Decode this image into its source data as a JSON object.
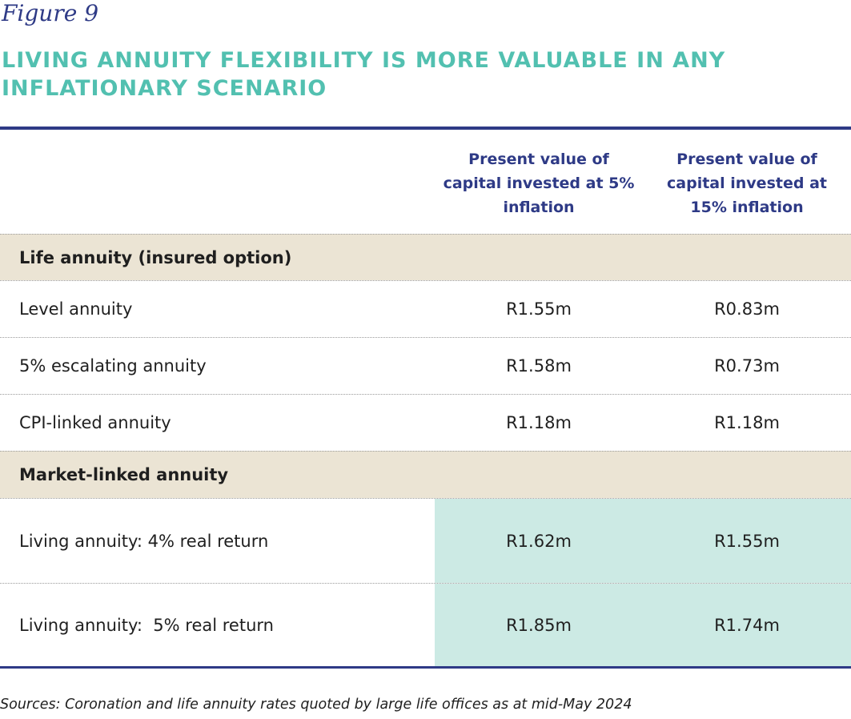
{
  "figure_label": "Figure 9",
  "title": "LIVING ANNUITY FLEXIBILITY IS MORE VALUABLE IN ANY INFLATIONARY SCENARIO",
  "columns": [
    "Present value of capital invested at 5% inflation",
    "Present value of capital invested at 15% inflation"
  ],
  "sections": [
    {
      "label": "Life annuity (insured option)",
      "rows": [
        {
          "label": "Level annuity",
          "values": [
            "R1.55m",
            "R0.83m"
          ]
        },
        {
          "label": "5% escalating annuity",
          "values": [
            "R1.58m",
            "R0.73m"
          ]
        },
        {
          "label": "CPI-linked annuity",
          "values": [
            "R1.18m",
            "R1.18m"
          ]
        }
      ]
    },
    {
      "label": "Market-linked annuity",
      "rows": [
        {
          "label": "Living annuity: 4% real return",
          "values": [
            "R1.62m",
            "R1.55m"
          ]
        },
        {
          "label": "Living annuity:  5% real return",
          "values": [
            "R1.85m",
            "R1.74m"
          ]
        }
      ]
    }
  ],
  "sources": "Sources: Coronation and life annuity rates quoted by large life offices as at mid-May 2024",
  "colors": {
    "navy": "#2e3a86",
    "teal_title": "#52c0b0",
    "section_bg": "#ebe4d4",
    "highlight_bg": "#cceae4"
  }
}
